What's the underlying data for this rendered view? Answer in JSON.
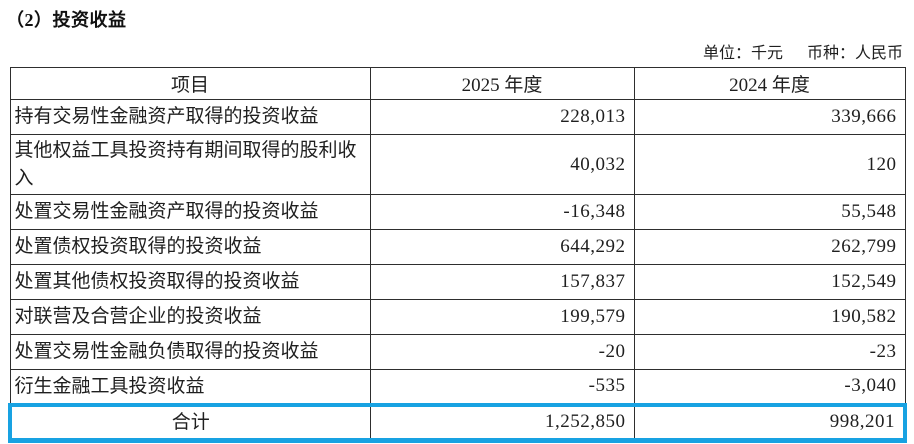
{
  "title": "（2）投资收益",
  "meta": {
    "unit": "单位：千元",
    "currency": "币种：人民币"
  },
  "table": {
    "columns": [
      "项目",
      "2025 年度",
      "2024 年度"
    ],
    "rows": [
      {
        "label": "持有交易性金融资产取得的投资收益",
        "y2025": "228,013",
        "y2024": "339,666"
      },
      {
        "label": "其他权益工具投资持有期间取得的股利收入",
        "y2025": "40,032",
        "y2024": "120"
      },
      {
        "label": "处置交易性金融资产取得的投资收益",
        "y2025": "-16,348",
        "y2024": "55,548"
      },
      {
        "label": "处置债权投资取得的投资收益",
        "y2025": "644,292",
        "y2024": "262,799"
      },
      {
        "label": "处置其他债权投资取得的投资收益",
        "y2025": "157,837",
        "y2024": "152,549"
      },
      {
        "label": "对联营及合营企业的投资收益",
        "y2025": "199,579",
        "y2024": "190,582"
      },
      {
        "label": "处置交易性金融负债取得的投资收益",
        "y2025": "-20",
        "y2024": "-23"
      },
      {
        "label": "衍生金融工具投资收益",
        "y2025": "-535",
        "y2024": "-3,040"
      }
    ],
    "total_row": {
      "label": "合计",
      "y2025": "1,252,850",
      "y2024": "998,201"
    }
  },
  "colors": {
    "highlight_border": "#18a2e2",
    "table_border": "#2e2e2e",
    "text": "#1f1f1f"
  }
}
